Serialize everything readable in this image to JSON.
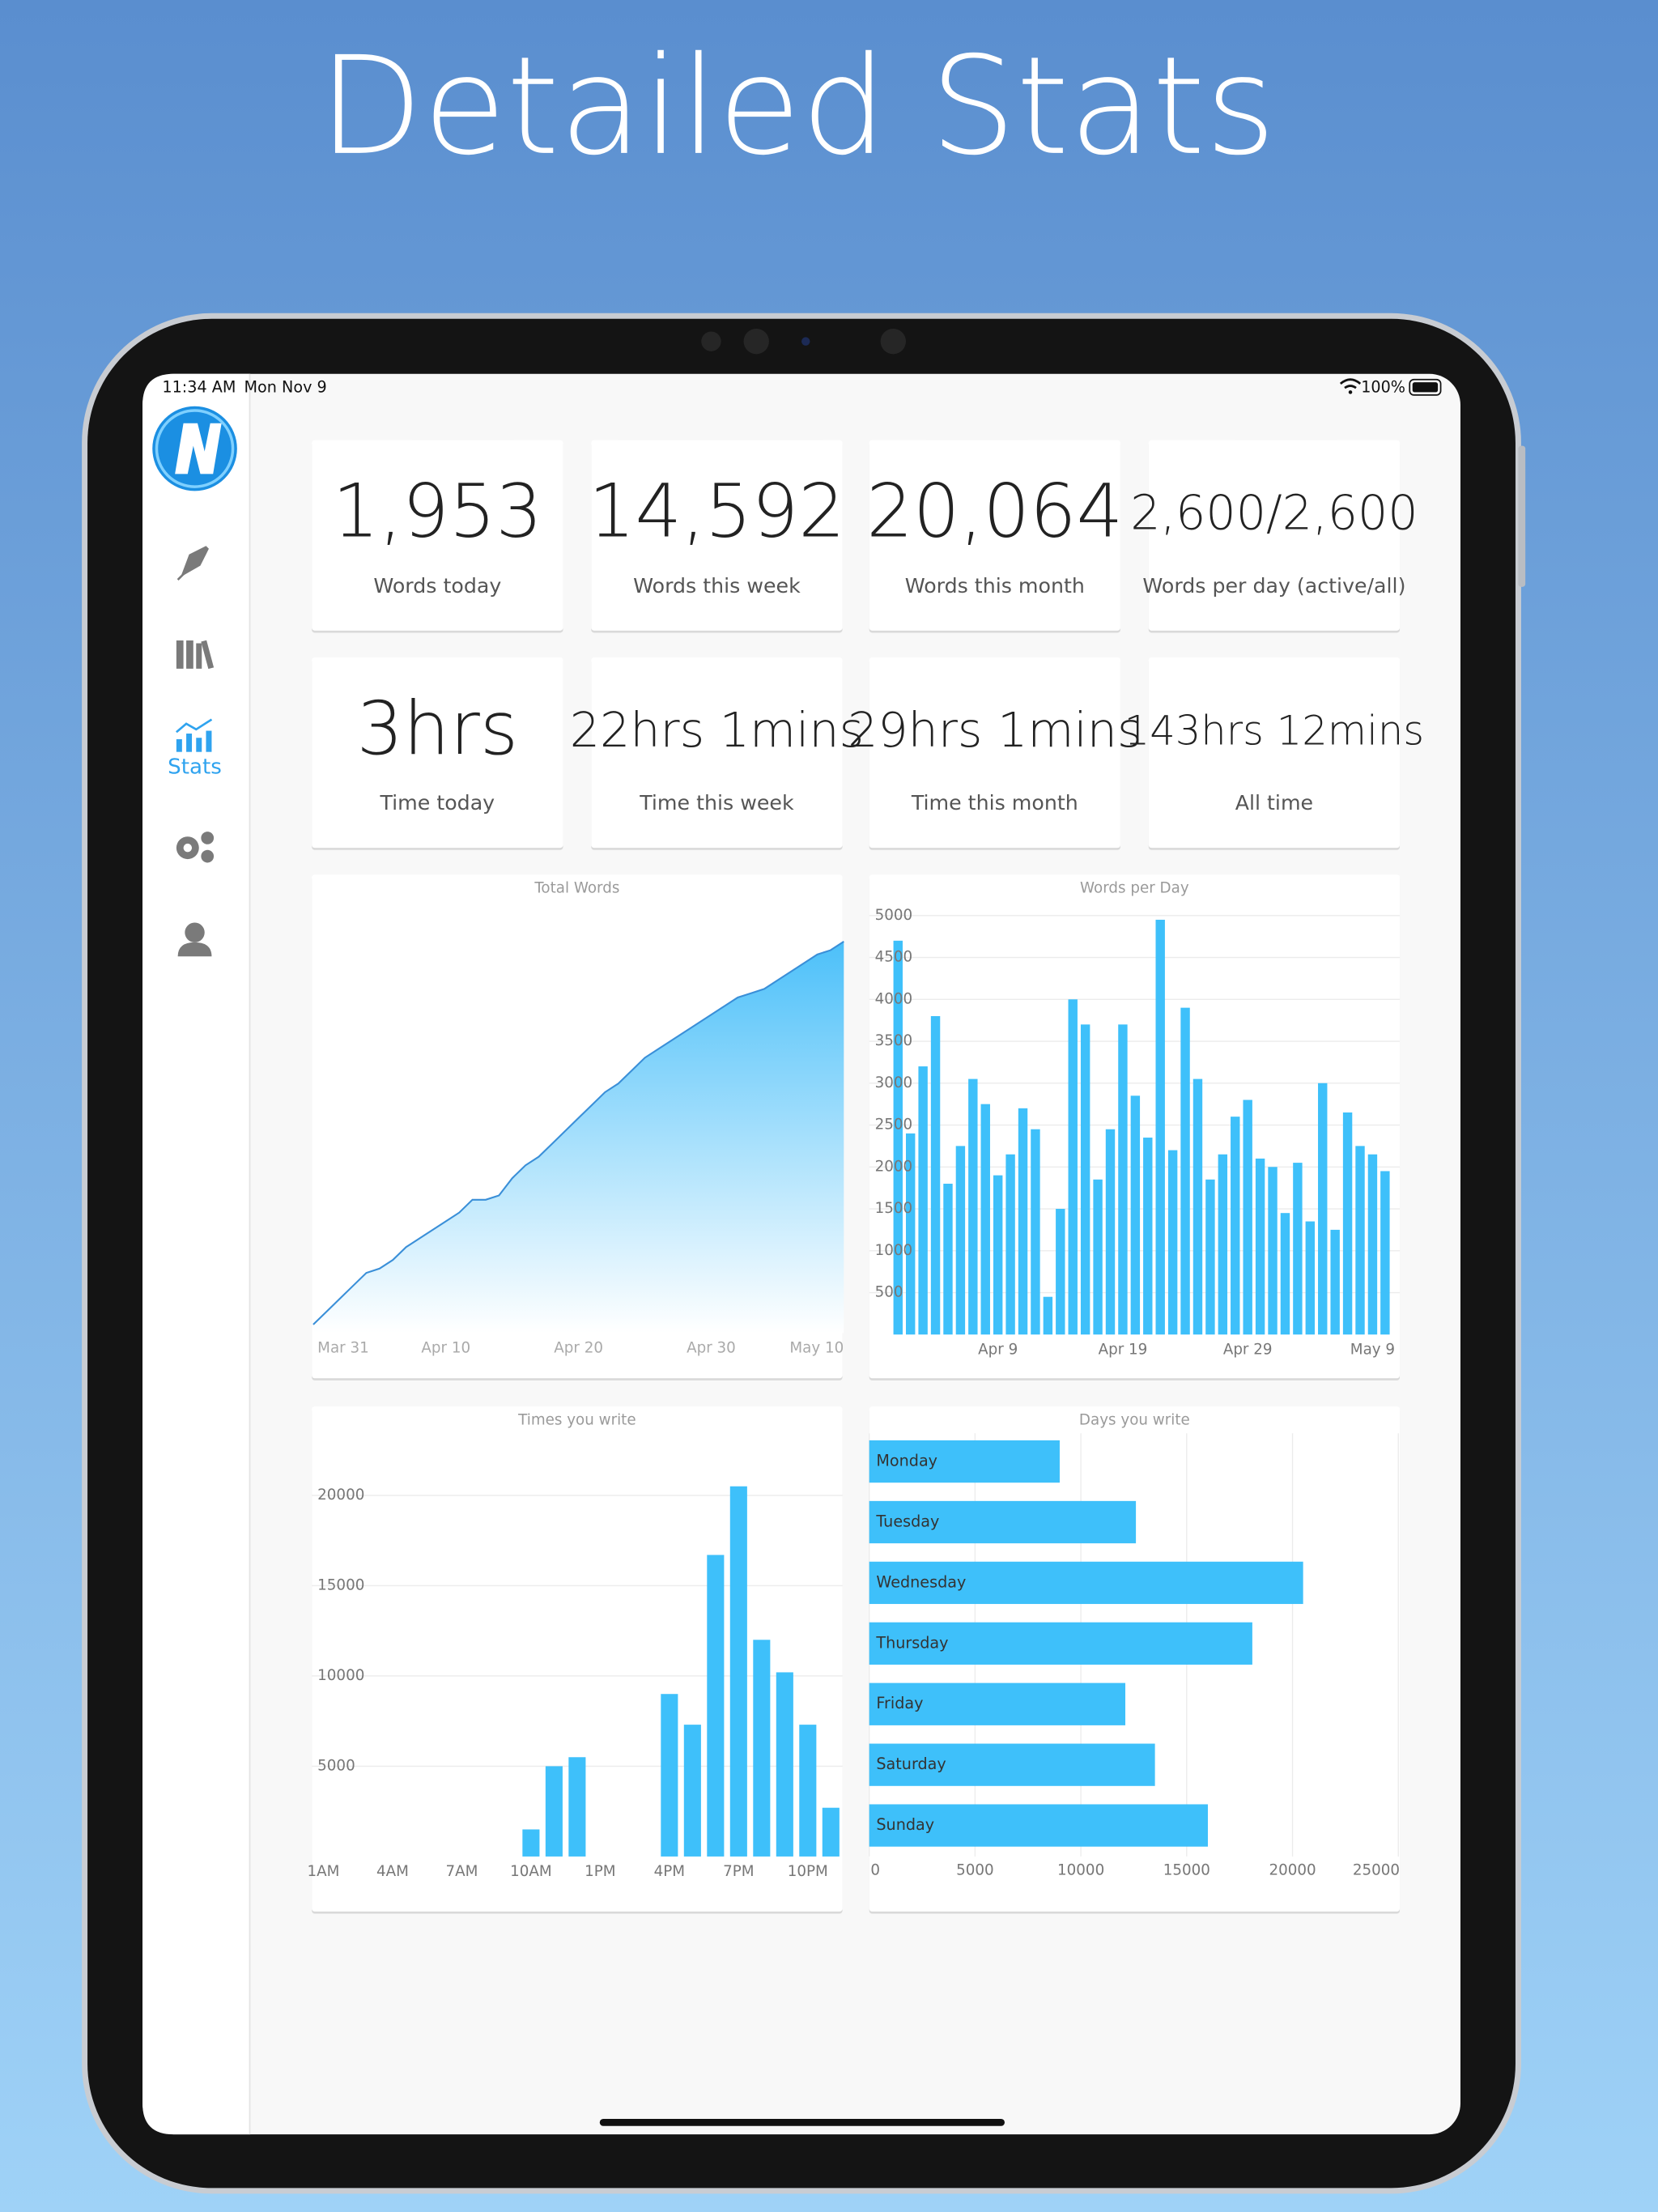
{
  "title": "Detailed Stats",
  "status_bar": {
    "time": "11:34 AM",
    "date": "Mon Nov 9",
    "battery": "100%"
  },
  "sidebar": {
    "active": "Stats"
  },
  "stats": [
    {
      "value": "1,953",
      "label": "Words today"
    },
    {
      "value": "14,592",
      "label": "Words this week"
    },
    {
      "value": "20,064",
      "label": "Words this month"
    },
    {
      "value": "2,600/2,600",
      "label": "Words per day (active/all)"
    },
    {
      "value": "3hrs",
      "label": "Time today"
    },
    {
      "value": "22hrs 1mins",
      "label": "Time this week"
    },
    {
      "value": "29hrs 1mins",
      "label": "Time this month"
    },
    {
      "value": "143hrs 12mins",
      "label": "All time"
    }
  ],
  "chart_data": [
    {
      "type": "area",
      "title": "Total Words",
      "categories": [
        "Mar 31",
        null,
        null,
        null,
        null,
        null,
        null,
        null,
        null,
        null,
        "Apr 10",
        null,
        null,
        null,
        null,
        null,
        null,
        null,
        null,
        null,
        "Apr 20",
        null,
        null,
        null,
        null,
        null,
        null,
        null,
        null,
        null,
        "Apr 30",
        null,
        null,
        null,
        null,
        null,
        null,
        null,
        null,
        null,
        "May 10"
      ],
      "values": [
        2,
        5,
        8,
        11,
        14,
        15,
        17,
        20,
        22,
        24,
        26,
        28,
        31,
        31,
        32,
        36,
        39,
        41,
        44,
        47,
        50,
        53,
        56,
        58,
        61,
        64,
        66,
        68,
        70,
        72,
        74,
        76,
        78,
        79,
        80,
        82,
        84,
        86,
        88,
        89,
        91
      ],
      "color": "#3a8fd8",
      "ylim": [
        0,
        100
      ]
    },
    {
      "type": "bar",
      "title": "Words per Day",
      "categories": [
        null,
        null,
        null,
        null,
        null,
        null,
        null,
        null,
        "Apr 9",
        null,
        null,
        null,
        null,
        null,
        null,
        null,
        null,
        null,
        "Apr 19",
        null,
        null,
        null,
        null,
        null,
        null,
        null,
        null,
        null,
        "Apr 29",
        null,
        null,
        null,
        null,
        null,
        null,
        null,
        null,
        null,
        "May 9",
        null
      ],
      "values": [
        4700,
        2400,
        3200,
        3800,
        1800,
        2250,
        3050,
        2750,
        1900,
        2150,
        2700,
        2450,
        450,
        1500,
        4000,
        3700,
        1850,
        2450,
        3700,
        2850,
        2350,
        4950,
        2200,
        3900,
        3050,
        1850,
        2150,
        2600,
        2800,
        2100,
        2000,
        1450,
        2050,
        1350,
        3000,
        1250,
        2650,
        2250,
        2150,
        1950
      ],
      "color": "#3ec0fa",
      "ylim": [
        0,
        5000
      ],
      "yticks": [
        500,
        1000,
        1500,
        2000,
        2500,
        3000,
        3500,
        4000,
        4500,
        5000
      ],
      "grid": true
    },
    {
      "type": "bar",
      "title": "Times you write",
      "categories": [
        "1AM",
        null,
        null,
        "4AM",
        null,
        null,
        "7AM",
        null,
        null,
        "10AM",
        null,
        null,
        "1PM",
        null,
        null,
        "4PM",
        null,
        null,
        "7PM",
        null,
        null,
        "10PM",
        null
      ],
      "values": [
        0,
        0,
        0,
        0,
        0,
        0,
        0,
        0,
        0,
        1500,
        5000,
        5500,
        0,
        0,
        0,
        9000,
        7300,
        16700,
        20500,
        12000,
        10200,
        7300,
        2700
      ],
      "color": "#3ec0fa",
      "ylim": [
        0,
        23000
      ],
      "yticks": [
        5000,
        10000,
        15000,
        20000
      ],
      "grid": true
    },
    {
      "type": "hbar",
      "title": "Days you write",
      "categories": [
        "Monday",
        "Tuesday",
        "Wednesday",
        "Thursday",
        "Friday",
        "Saturday",
        "Sunday"
      ],
      "values": [
        9000,
        12600,
        20500,
        18100,
        12100,
        13500,
        16000
      ],
      "color": "#3ec0fa",
      "xlim": [
        0,
        25000
      ],
      "xticks": [
        0,
        5000,
        10000,
        15000,
        20000,
        25000
      ],
      "grid": true
    }
  ]
}
